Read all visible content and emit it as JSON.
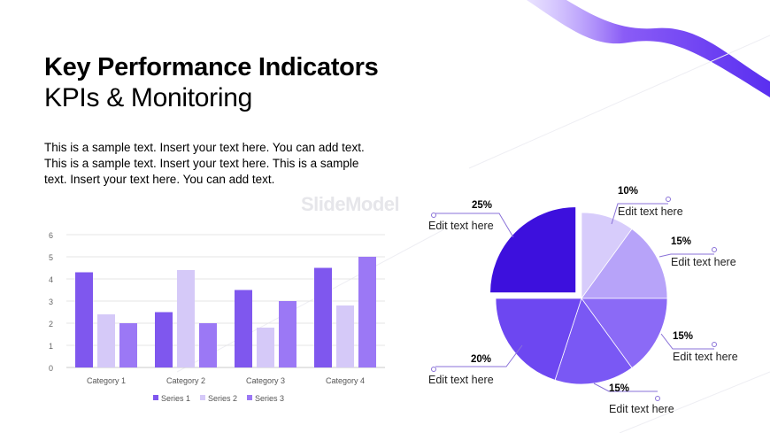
{
  "slide": {
    "title": "Key Performance Indicators",
    "subtitle": "KPIs & Monitoring",
    "body": "This is a sample text. Insert your text here. You can add text. This is a sample text. Insert your text here. This is a sample text. Insert your text here. You can add text.",
    "watermark": "SlideModel"
  },
  "colors": {
    "series1": "#7f57ee",
    "series2": "#d5c9f8",
    "series3": "#9b78f5",
    "wave": "#8a5cf6",
    "pie_dark": "#3d10dd",
    "pie_light1": "#d7ccfb",
    "pie_light2": "#b7a3f9",
    "pie_mid1": "#8b6af6",
    "pie_mid2": "#7a58f4",
    "pie_mid3": "#6d47f1",
    "callout_line": "#8a72d8"
  },
  "chart_data": [
    {
      "type": "bar",
      "categories": [
        "Category 1",
        "Category 2",
        "Category 3",
        "Category 4"
      ],
      "series": [
        {
          "name": "Series 1",
          "values": [
            4.3,
            2.5,
            3.5,
            4.5
          ]
        },
        {
          "name": "Series 2",
          "values": [
            2.4,
            4.4,
            1.8,
            2.8
          ]
        },
        {
          "name": "Series 3",
          "values": [
            2.0,
            2.0,
            3.0,
            5.0
          ]
        }
      ],
      "yticks": [
        "0",
        "1",
        "2",
        "3",
        "4",
        "5",
        "6"
      ],
      "ylim": [
        0,
        6
      ],
      "grid": true,
      "legend": "bottom"
    },
    {
      "type": "pie",
      "slices": [
        {
          "value": 10,
          "label": "10%",
          "caption": "Edit text here"
        },
        {
          "value": 15,
          "label": "15%",
          "caption": "Edit text here"
        },
        {
          "value": 15,
          "label": "15%",
          "caption": "Edit text here"
        },
        {
          "value": 15,
          "label": "15%",
          "caption": "Edit text here"
        },
        {
          "value": 20,
          "label": "20%",
          "caption": "Edit text here"
        },
        {
          "value": 25,
          "label": "25%",
          "caption": "Edit text here",
          "exploded": true
        }
      ]
    }
  ]
}
